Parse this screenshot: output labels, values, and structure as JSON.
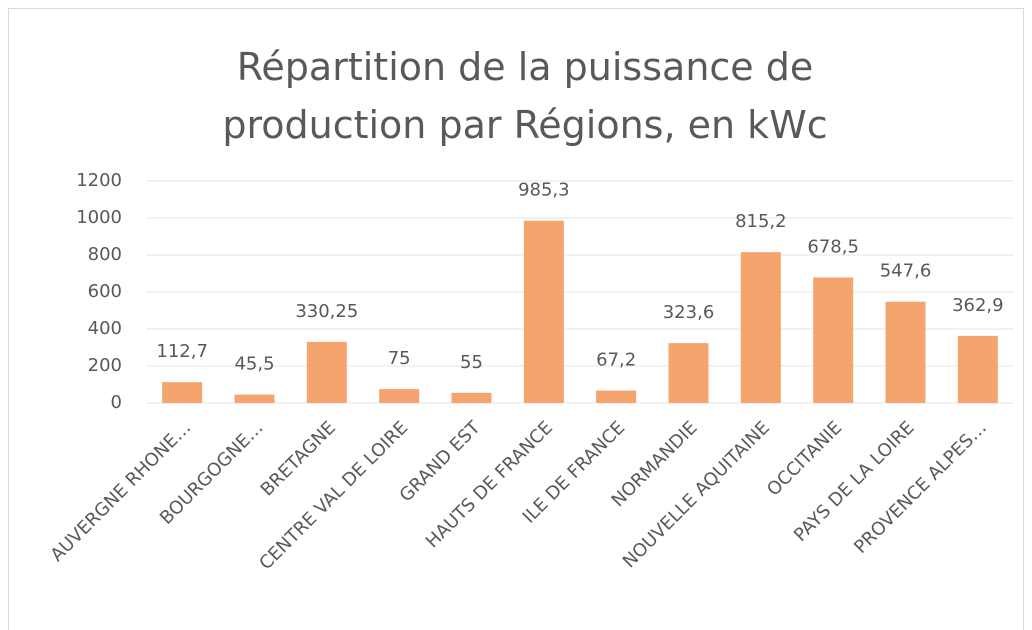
{
  "chart_data": {
    "type": "bar",
    "title": "Répartition de la puissance de production par Régions, en kWc",
    "categories": [
      "AUVERGNE RHONE…",
      "BOURGOGNE…",
      "BRETAGNE",
      "CENTRE VAL DE LOIRE",
      "GRAND EST",
      "HAUTS DE FRANCE",
      "ILE DE FRANCE",
      "NORMANDIE",
      "NOUVELLE AQUITAINE",
      "OCCITANIE",
      "PAYS DE LA LOIRE",
      "PROVENCE ALPES…"
    ],
    "values": [
      112.7,
      45.5,
      330.25,
      75,
      55,
      985.3,
      67.2,
      323.6,
      815.2,
      678.5,
      547.6,
      362.9
    ],
    "value_labels": [
      "112,7",
      "45,5",
      "330,25",
      "75",
      "55",
      "985,3",
      "67,2",
      "323,6",
      "815,2",
      "678,5",
      "547,6",
      "362,9"
    ],
    "color": "#f4a46c",
    "ylim": [
      0,
      1200
    ],
    "yticks": [
      0,
      200,
      400,
      600,
      800,
      1000,
      1200
    ],
    "grid": true
  }
}
